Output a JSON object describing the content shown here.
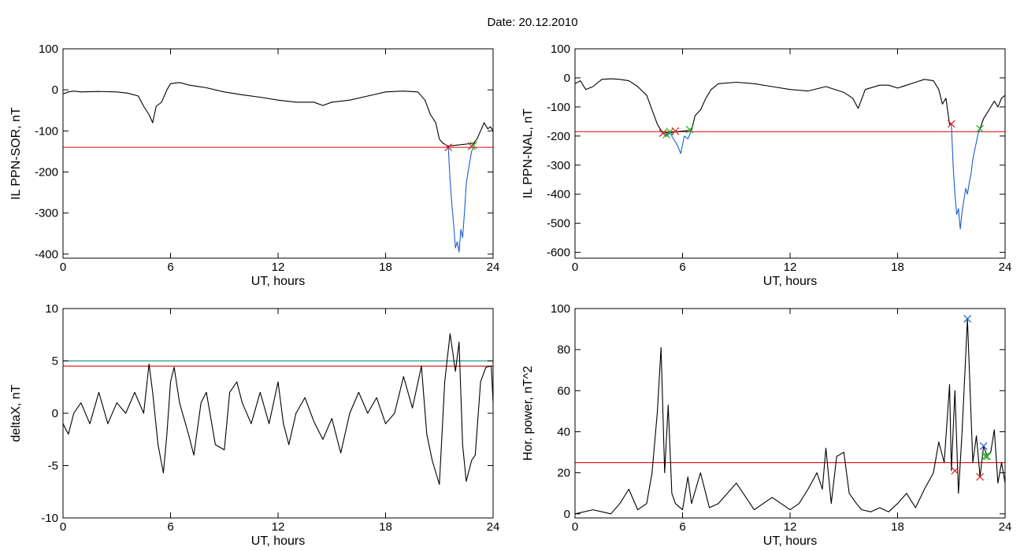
{
  "title": "Date:  20.12.2010",
  "chart_data": [
    {
      "type": "line",
      "xlabel": "UT, hours",
      "ylabel": "IL PPN-SOR, nT",
      "xlim": [
        0,
        24
      ],
      "ylim": [
        -410,
        100
      ],
      "xticks": [
        "0",
        "6",
        "12",
        "18",
        "24"
      ],
      "xtick_values": [
        0,
        6,
        12,
        18,
        24
      ],
      "yticks": [
        "100",
        "0",
        "-100",
        "-200",
        "-300",
        "-400"
      ],
      "ytick_values": [
        100,
        0,
        -100,
        -200,
        -300,
        -400
      ],
      "series": [
        {
          "color": "#000000",
          "x": [
            0,
            0.3,
            0.6,
            1.0,
            2.0,
            3.0,
            3.6,
            4.2,
            4.5,
            4.8,
            5.0,
            5.2,
            5.5,
            5.8,
            6.0,
            6.5,
            7.0,
            8.0,
            9.0,
            10.0,
            11.0,
            12.0,
            13.0,
            14.0,
            14.5,
            15.0,
            16.0,
            17.0,
            18.0,
            19.0,
            19.8,
            20.2,
            20.5,
            20.8,
            21.0,
            21.2,
            21.5,
            22.9,
            23.1,
            23.3,
            23.5,
            23.7,
            23.85,
            24.0
          ],
          "y": [
            -10,
            -5,
            -3,
            -5,
            -4,
            -5,
            -8,
            -15,
            -40,
            -60,
            -80,
            -40,
            -30,
            0,
            15,
            18,
            12,
            5,
            -5,
            -12,
            -18,
            -25,
            -30,
            -30,
            -38,
            -30,
            -25,
            -15,
            -5,
            -3,
            -5,
            -25,
            -60,
            -80,
            -120,
            -130,
            -137,
            -130,
            -120,
            -100,
            -80,
            -95,
            -90,
            -100
          ]
        },
        {
          "color": "#1a5fd0",
          "x": [
            21.5,
            21.6,
            21.7,
            21.8,
            21.9,
            22.0,
            22.1,
            22.2,
            22.3,
            22.4,
            22.5,
            22.6,
            22.7,
            22.8,
            22.9
          ],
          "y": [
            -140,
            -220,
            -280,
            -330,
            -385,
            -370,
            -395,
            -340,
            -360,
            -300,
            -230,
            -200,
            -175,
            -150,
            -140
          ]
        }
      ],
      "threshold_lines": [
        {
          "y": -140,
          "color": "#e02020"
        }
      ],
      "markers": [
        {
          "x": 21.5,
          "y": -140,
          "color": "#e02020"
        },
        {
          "x": 22.8,
          "y": -137,
          "color": "#e02020"
        },
        {
          "x": 22.9,
          "y": -135,
          "color": "#22aa22"
        }
      ]
    },
    {
      "type": "line",
      "xlabel": "UT, hours",
      "ylabel": "IL PPN-NAL, nT",
      "xlim": [
        0,
        24
      ],
      "ylim": [
        -620,
        100
      ],
      "xticks": [
        "0",
        "6",
        "12",
        "18",
        "24"
      ],
      "xtick_values": [
        0,
        6,
        12,
        18,
        24
      ],
      "yticks": [
        "100",
        "0",
        "-100",
        "-200",
        "-300",
        "-400",
        "-500",
        "-600"
      ],
      "ytick_values": [
        100,
        0,
        -100,
        -200,
        -300,
        -400,
        -500,
        -600
      ],
      "series": [
        {
          "color": "#000000",
          "x": [
            0,
            0.3,
            0.6,
            1.0,
            1.5,
            2.0,
            2.5,
            3.0,
            3.5,
            4.0,
            4.3,
            4.6,
            4.8,
            4.9,
            6.5,
            6.7,
            7.0,
            7.3,
            7.6,
            8.0,
            9.0,
            10.0,
            11.0,
            12.0,
            13.0,
            14.0,
            15.0,
            15.5,
            15.8,
            16.2,
            17.0,
            17.5,
            18.0,
            18.5,
            19.0,
            19.5,
            20.0,
            20.3,
            20.5,
            20.7,
            20.9,
            21.0
          ],
          "y": [
            -20,
            -10,
            -40,
            -30,
            -5,
            -3,
            -5,
            -10,
            -30,
            -60,
            -110,
            -160,
            -180,
            -190,
            -180,
            -130,
            -110,
            -70,
            -40,
            -20,
            -15,
            -20,
            -30,
            -40,
            -45,
            -30,
            -50,
            -70,
            -105,
            -40,
            -25,
            -25,
            -35,
            -25,
            -15,
            -5,
            -10,
            -40,
            -90,
            -70,
            -160,
            -158
          ]
        },
        {
          "color": "#1a5fd0",
          "x": [
            4.9,
            5.1,
            5.3,
            5.5,
            5.7,
            5.9,
            6.1,
            6.3,
            6.5
          ],
          "y": [
            -190,
            -200,
            -190,
            -210,
            -230,
            -260,
            -200,
            -210,
            -180
          ]
        },
        {
          "color": "#1a5fd0",
          "x": [
            21.0,
            21.1,
            21.2,
            21.3,
            21.4,
            21.5,
            21.6,
            21.7,
            21.8,
            21.9,
            22.0,
            22.1,
            22.2,
            22.3,
            22.4,
            22.5,
            22.6
          ],
          "y": [
            -158,
            -300,
            -400,
            -470,
            -450,
            -520,
            -460,
            -420,
            -380,
            -400,
            -360,
            -330,
            -280,
            -250,
            -220,
            -190,
            -175
          ]
        },
        {
          "color": "#000000",
          "x": [
            22.6,
            22.8,
            23.0,
            23.2,
            23.4,
            23.6,
            23.8,
            24.0
          ],
          "y": [
            -175,
            -140,
            -120,
            -100,
            -80,
            -100,
            -70,
            -60
          ]
        }
      ],
      "threshold_lines": [
        {
          "y": -185,
          "color": "#e02020"
        }
      ],
      "markers": [
        {
          "x": 4.9,
          "y": -190,
          "color": "#e02020"
        },
        {
          "x": 5.1,
          "y": -195,
          "color": "#22aa22"
        },
        {
          "x": 5.3,
          "y": -185,
          "color": "#22aa22"
        },
        {
          "x": 5.6,
          "y": -183,
          "color": "#e02020"
        },
        {
          "x": 6.4,
          "y": -178,
          "color": "#22aa22"
        },
        {
          "x": 21.0,
          "y": -158,
          "color": "#e02020"
        },
        {
          "x": 22.6,
          "y": -175,
          "color": "#22aa22"
        }
      ]
    },
    {
      "type": "line",
      "xlabel": "UT, hours",
      "ylabel": "deltaX, nT",
      "xlim": [
        0,
        24
      ],
      "ylim": [
        -10,
        10
      ],
      "xticks": [
        "0",
        "6",
        "12",
        "18",
        "24"
      ],
      "xtick_values": [
        0,
        6,
        12,
        18,
        24
      ],
      "yticks": [
        "10",
        "5",
        "0",
        "-5",
        "-10"
      ],
      "ytick_values": [
        10,
        5,
        0,
        -5,
        -10
      ],
      "series": [
        {
          "color": "#000000",
          "x": [
            0,
            0.3,
            0.6,
            1.0,
            1.5,
            2.0,
            2.5,
            3.0,
            3.5,
            4.0,
            4.5,
            4.8,
            5.0,
            5.3,
            5.6,
            5.8,
            6.0,
            6.2,
            6.5,
            7.0,
            7.3,
            7.7,
            8.0,
            8.5,
            9.0,
            9.3,
            9.7,
            10.0,
            10.5,
            11.0,
            11.5,
            12.0,
            12.3,
            12.6,
            13.0,
            13.5,
            14.0,
            14.5,
            15.0,
            15.5,
            16.0,
            16.5,
            17.0,
            17.5,
            18.0,
            18.5,
            19.0,
            19.5,
            20.0,
            20.3,
            20.6,
            21.0,
            21.3,
            21.6,
            21.9,
            22.1,
            22.3,
            22.5,
            22.8,
            23.0,
            23.3,
            23.6,
            23.9,
            24.0
          ],
          "y": [
            -1,
            -2,
            0,
            1,
            -1,
            2,
            -1,
            1,
            0,
            2,
            0,
            4.7,
            2,
            -3,
            -5.7,
            -2,
            3,
            4.4,
            1,
            -2,
            -4,
            1,
            2,
            -3,
            -3.5,
            2,
            3,
            1,
            -1,
            2,
            -1,
            3,
            -1,
            -3,
            0,
            1.5,
            -0.8,
            -2.5,
            -0.5,
            -3.8,
            0,
            2,
            0,
            1.5,
            -1,
            0,
            3.5,
            0.5,
            4.5,
            -2,
            -4.5,
            -6.8,
            3,
            7.6,
            4,
            6.8,
            -3,
            -6.5,
            -4.5,
            -4,
            3,
            4.4,
            4.5,
            1
          ]
        }
      ],
      "threshold_lines": [
        {
          "y": 5,
          "color": "#1e9e8e"
        },
        {
          "y": 4.5,
          "color": "#e02020"
        }
      ],
      "markers": []
    },
    {
      "type": "line",
      "xlabel": "UT, hours",
      "ylabel": "Hor. power, nT^2",
      "xlim": [
        0,
        24
      ],
      "ylim": [
        -2,
        100
      ],
      "xticks": [
        "0",
        "6",
        "12",
        "18",
        "24"
      ],
      "xtick_values": [
        0,
        6,
        12,
        18,
        24
      ],
      "yticks": [
        "100",
        "80",
        "60",
        "40",
        "20",
        "0"
      ],
      "ytick_values": [
        100,
        80,
        60,
        40,
        20,
        0
      ],
      "series": [
        {
          "color": "#000000",
          "x": [
            0,
            1.0,
            2.0,
            2.5,
            3.0,
            3.5,
            4.0,
            4.3,
            4.6,
            4.8,
            5.0,
            5.2,
            5.4,
            5.6,
            6.0,
            6.3,
            6.5,
            7.0,
            7.5,
            8.0,
            9.0,
            10.0,
            11.0,
            12.0,
            12.5,
            13.0,
            13.5,
            13.8,
            14.0,
            14.3,
            14.6,
            15.0,
            15.3,
            15.7,
            16.0,
            16.5,
            17.0,
            17.5,
            18.0,
            18.5,
            19.0,
            19.5,
            20.0,
            20.3,
            20.6,
            20.9,
            21.0,
            21.2,
            21.4,
            21.6,
            21.9,
            22.2,
            22.4,
            22.6,
            22.8,
            23.0,
            23.2,
            23.4,
            23.6,
            23.8,
            24.0
          ],
          "y": [
            0,
            2,
            0,
            5,
            12,
            2,
            5,
            20,
            50,
            81,
            20,
            53,
            10,
            5,
            2,
            18,
            5,
            20,
            3,
            5,
            15,
            2,
            8,
            2,
            5,
            12,
            20,
            12,
            32,
            5,
            28,
            30,
            10,
            5,
            2,
            1,
            3,
            1,
            5,
            10,
            3,
            12,
            20,
            35,
            25,
            63,
            21,
            60,
            10,
            40,
            95,
            25,
            38,
            18,
            33,
            28,
            30,
            41,
            15,
            25,
            15
          ]
        }
      ],
      "threshold_lines": [
        {
          "y": 25,
          "color": "#e02020"
        }
      ],
      "markers": [
        {
          "x": 21.9,
          "y": 95,
          "color": "#1a5fd0"
        },
        {
          "x": 21.2,
          "y": 21,
          "color": "#e02020"
        },
        {
          "x": 22.6,
          "y": 18,
          "color": "#e02020"
        },
        {
          "x": 22.8,
          "y": 33,
          "color": "#1a5fd0"
        },
        {
          "x": 22.9,
          "y": 28,
          "color": "#22aa22"
        },
        {
          "x": 23.0,
          "y": 28,
          "color": "#22aa22"
        }
      ]
    }
  ]
}
